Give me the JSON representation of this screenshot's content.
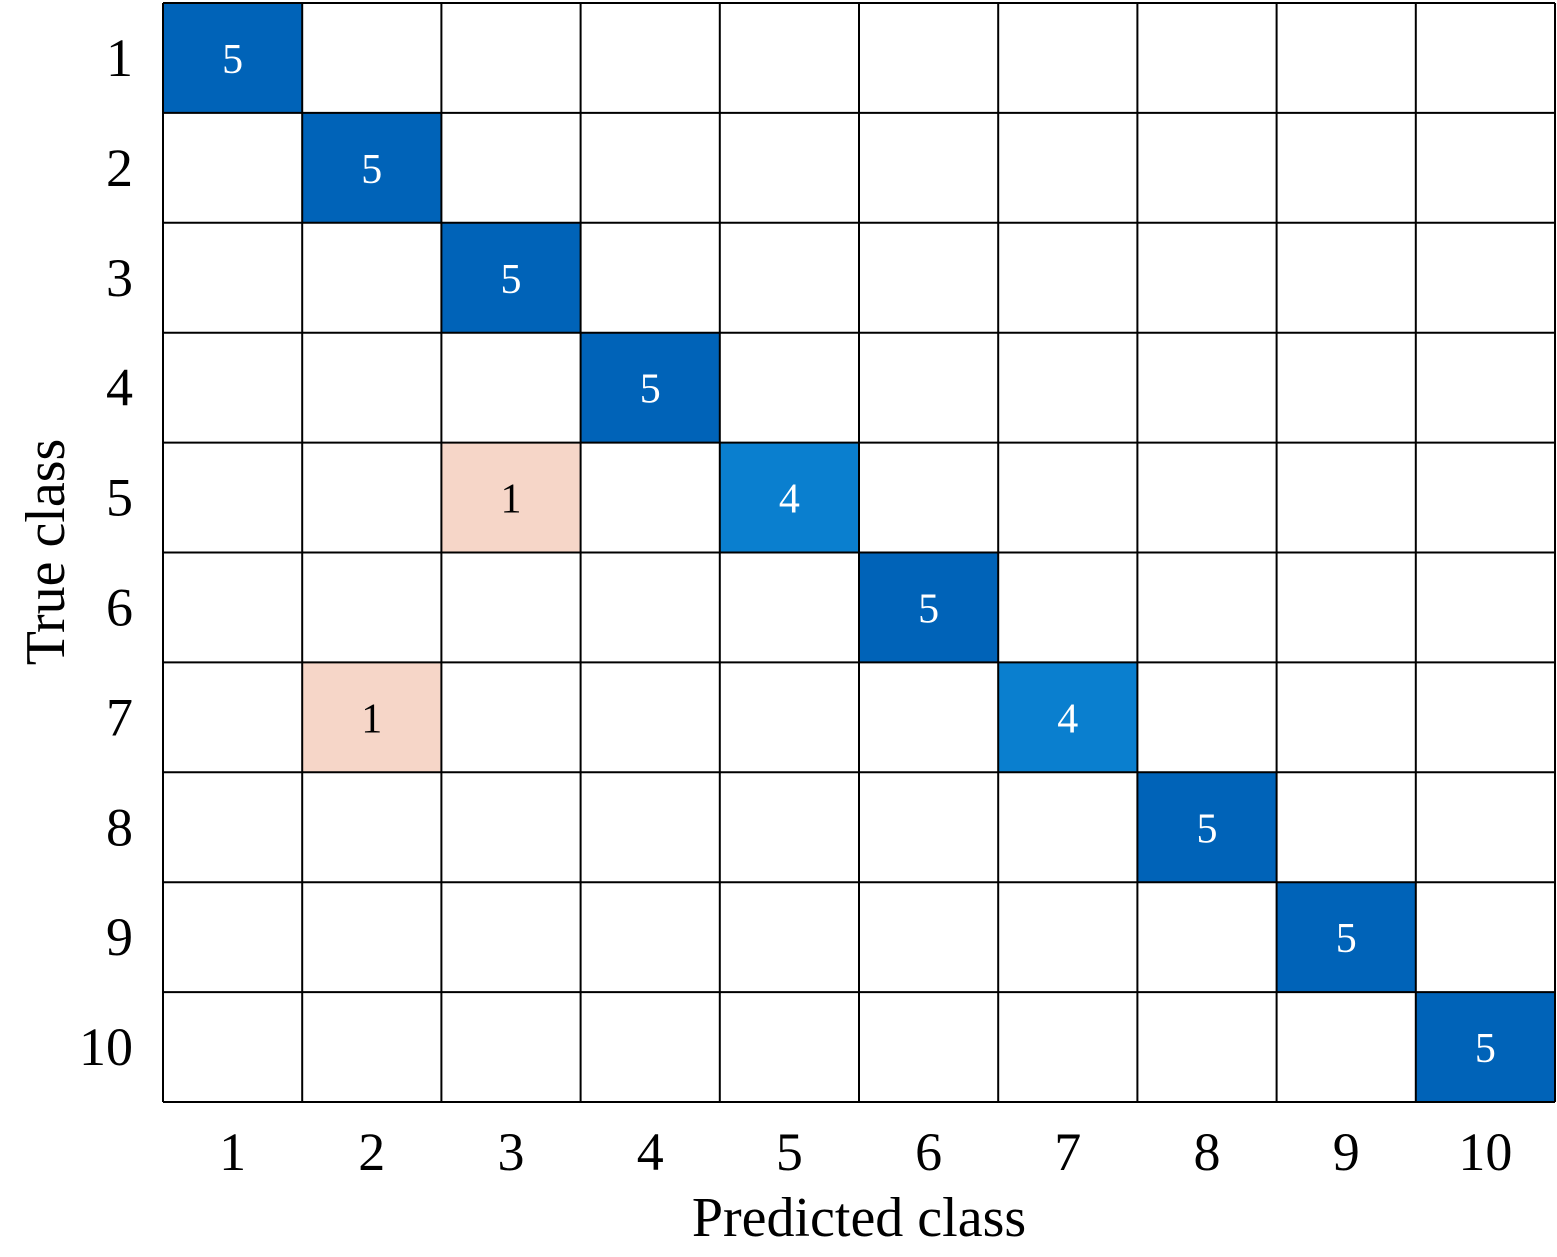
{
  "chart_data": {
    "type": "heatmap",
    "title": "",
    "xlabel": "Predicted class",
    "ylabel": "True class",
    "x_categories": [
      "1",
      "2",
      "3",
      "4",
      "5",
      "6",
      "7",
      "8",
      "9",
      "10"
    ],
    "y_categories": [
      "1",
      "2",
      "3",
      "4",
      "5",
      "6",
      "7",
      "8",
      "9",
      "10"
    ],
    "cells": [
      {
        "true": "1",
        "predicted": "1",
        "value": 5
      },
      {
        "true": "2",
        "predicted": "2",
        "value": 5
      },
      {
        "true": "3",
        "predicted": "3",
        "value": 5
      },
      {
        "true": "4",
        "predicted": "4",
        "value": 5
      },
      {
        "true": "5",
        "predicted": "3",
        "value": 1
      },
      {
        "true": "5",
        "predicted": "5",
        "value": 4
      },
      {
        "true": "6",
        "predicted": "6",
        "value": 5
      },
      {
        "true": "7",
        "predicted": "2",
        "value": 1
      },
      {
        "true": "7",
        "predicted": "7",
        "value": 4
      },
      {
        "true": "8",
        "predicted": "8",
        "value": 5
      },
      {
        "true": "9",
        "predicted": "9",
        "value": 5
      },
      {
        "true": "10",
        "predicted": "10",
        "value": 5
      }
    ],
    "grid": true,
    "colors": {
      "correct_high": "#0063b8",
      "correct_low": "#0a7fcf",
      "misclassified": "#f6d6c8",
      "grid_line": "#000000",
      "text_on_dark": "#ffffff",
      "text_on_light": "#000000"
    }
  }
}
